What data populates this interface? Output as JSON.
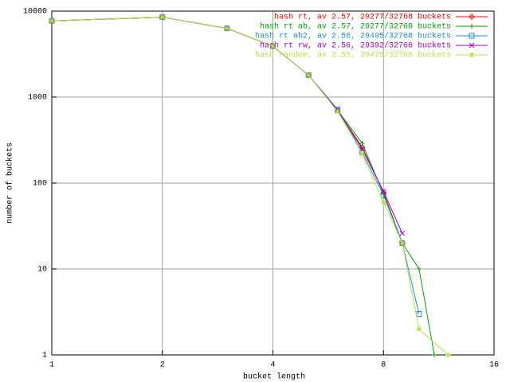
{
  "chart_data": {
    "type": "line",
    "xlabel": "bucket length",
    "ylabel": "number of buckets",
    "xscale": "log",
    "yscale": "log",
    "grid": true,
    "legend": "top-right",
    "xlim": [
      1,
      16
    ],
    "xticks": [
      1,
      2,
      4,
      8,
      16
    ],
    "ylim": [
      1,
      10000
    ],
    "yticks": [
      1,
      10,
      100,
      1000,
      10000
    ],
    "series": [
      {
        "name": "hash rt, av 2.57, 29277/32768 buckets",
        "color": "#ff0000",
        "marker": "diamond",
        "x": [
          1,
          2,
          3,
          4,
          5,
          6,
          7,
          8,
          9
        ],
        "values": [
          7700,
          8500,
          6300,
          3900,
          1800,
          700,
          260,
          78,
          20
        ]
      },
      {
        "name": "hash rt ab, av 2.57, 29277/32768 buckets",
        "color": "#00a000",
        "marker": "plus",
        "x": [
          1,
          2,
          3,
          4,
          5,
          6,
          7,
          8,
          9,
          10,
          11
        ],
        "values": [
          7700,
          8500,
          6300,
          3900,
          1800,
          700,
          290,
          75,
          20,
          10,
          1
        ]
      },
      {
        "name": "hash rt ab2, av 2.56, 29405/32768 buckets",
        "color": "#1e90d0",
        "marker": "square",
        "x": [
          1,
          2,
          3,
          4,
          5,
          6,
          7,
          8,
          9,
          10
        ],
        "values": [
          7700,
          8500,
          6300,
          3900,
          1800,
          720,
          230,
          72,
          20,
          3
        ]
      },
      {
        "name": "hash rt rw, av 2.56, 29392/32768 buckets",
        "color": "#a000c0",
        "marker": "cross",
        "x": [
          1,
          2,
          3,
          4,
          5,
          6,
          7,
          8,
          9
        ],
        "values": [
          7700,
          8500,
          6300,
          3900,
          1800,
          700,
          250,
          80,
          26
        ]
      },
      {
        "name": "hash random, av 2.55, 29475/32768 buckets",
        "color": "#b8e040",
        "marker": "star",
        "x": [
          1,
          2,
          3,
          4,
          5,
          6,
          7,
          8,
          9,
          10,
          12
        ],
        "values": [
          7700,
          8500,
          6300,
          3900,
          1800,
          680,
          220,
          60,
          20,
          2,
          1
        ]
      }
    ]
  }
}
